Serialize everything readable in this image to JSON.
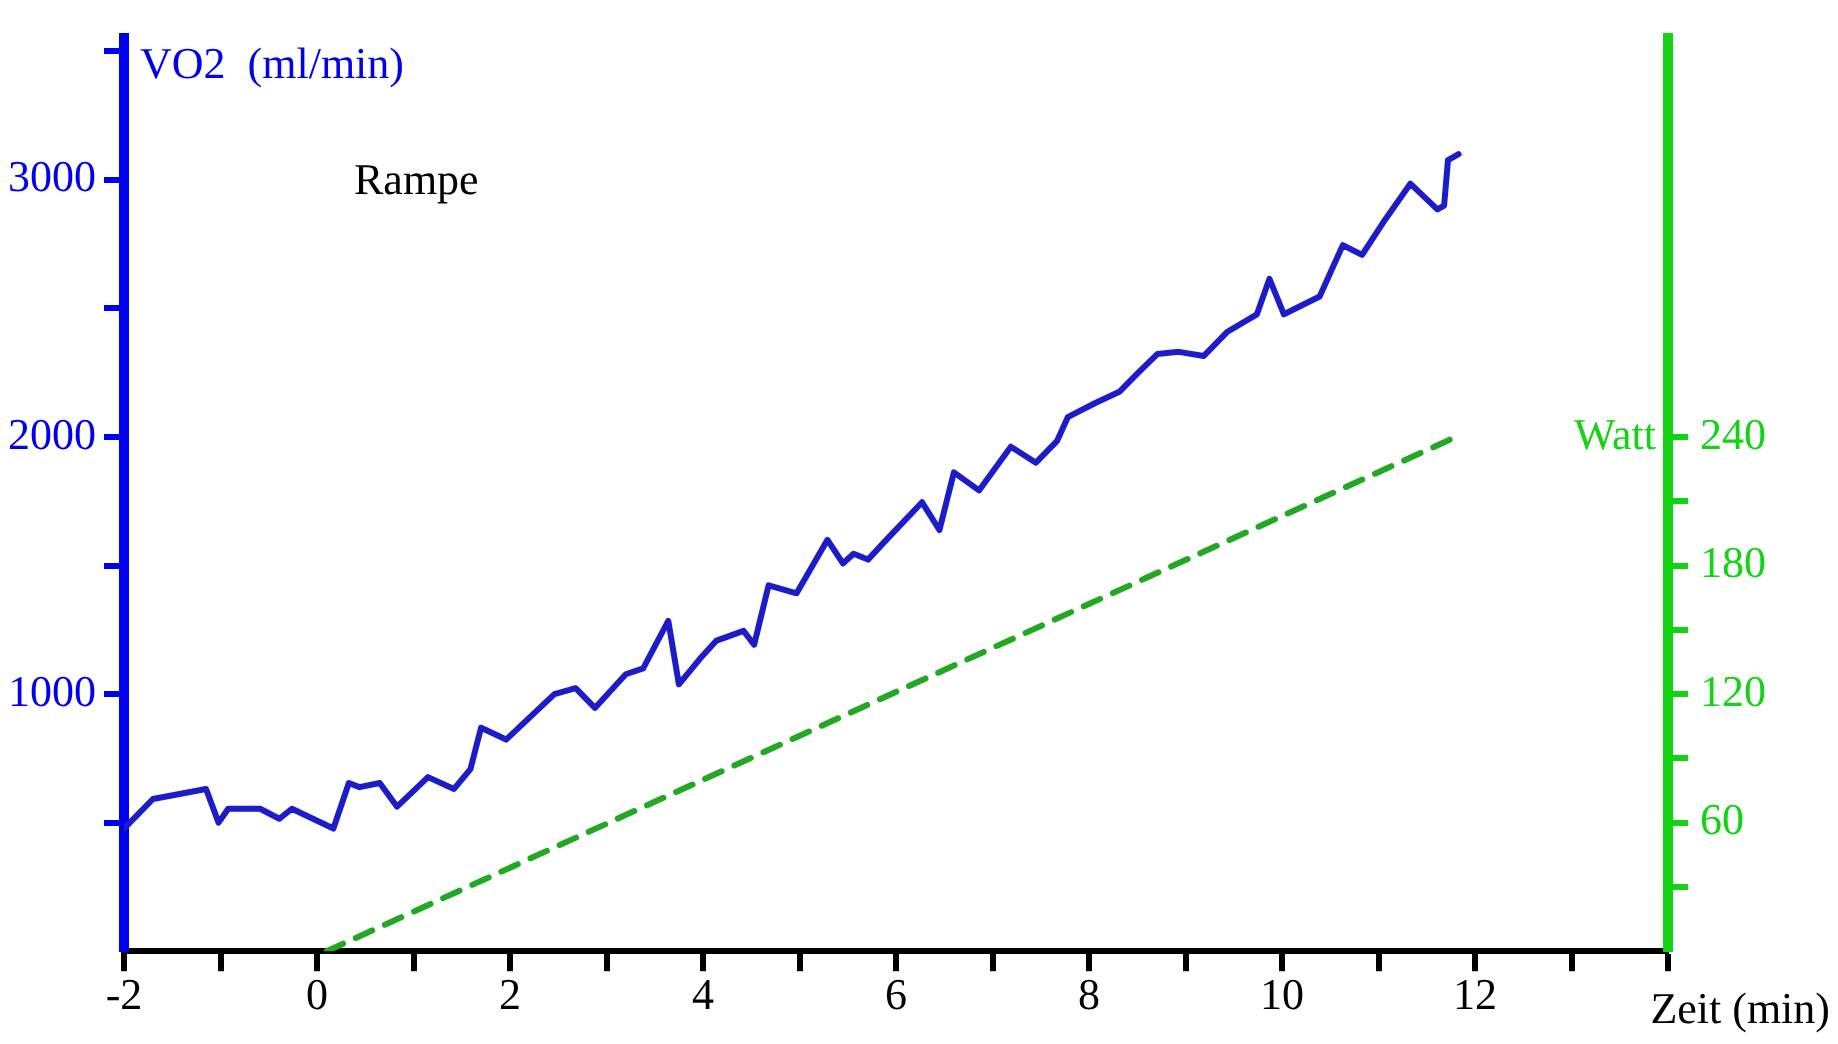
{
  "chart_data": {
    "type": "line",
    "ylabel": "VO2  (ml/min)",
    "y2label": "Watt",
    "xlabel": "Zeit (min)",
    "annotations": [
      "Rampe"
    ],
    "xlim": [
      -2,
      14
    ],
    "ylim": [
      0,
      3550
    ],
    "y2lim": [
      0,
      426
    ],
    "xticks": [
      -2,
      {
        "value": -1,
        "label": null
      },
      0,
      {
        "value": 1,
        "label": null
      },
      2,
      {
        "value": 3,
        "label": null
      },
      4,
      {
        "value": 5,
        "label": null
      },
      6,
      {
        "value": 7,
        "label": null
      },
      8,
      {
        "value": 9,
        "label": null
      },
      10,
      {
        "value": 11,
        "label": null
      },
      12,
      {
        "value": 13,
        "label": null
      },
      {
        "value": 14,
        "label": null
      }
    ],
    "yticks": [
      {
        "value": 500,
        "label": null
      },
      1000,
      {
        "value": 1500,
        "label": null
      },
      2000,
      {
        "value": 2500,
        "label": null
      },
      3000,
      {
        "value": 3500,
        "label": null
      }
    ],
    "y2ticks": [
      {
        "value": 30,
        "label": null
      },
      60,
      {
        "value": 90,
        "label": null
      },
      120,
      {
        "value": 150,
        "label": null
      },
      180,
      {
        "value": 210,
        "label": null
      },
      240
    ],
    "grid": false,
    "legend": false,
    "marker": "none",
    "series": [
      {
        "color": "#1c1cc8",
        "line_style": "solid",
        "x": [
          -2.0,
          -1.7,
          -1.15,
          -1.02,
          -0.92,
          -0.59,
          -0.39,
          -0.26,
          0.17,
          0.33,
          0.44,
          0.65,
          0.83,
          1.15,
          1.42,
          1.59,
          1.7,
          1.96,
          2.46,
          2.68,
          2.88,
          3.2,
          3.38,
          3.64,
          3.75,
          3.97,
          4.14,
          4.42,
          4.53,
          4.68,
          4.97,
          5.29,
          5.45,
          5.56,
          5.71,
          5.88,
          6.27,
          6.45,
          6.6,
          6.86,
          7.19,
          7.45,
          7.67,
          7.78,
          8.06,
          8.32,
          8.5,
          8.71,
          8.93,
          9.19,
          9.43,
          9.74,
          9.87,
          10.02,
          10.39,
          10.63,
          10.83,
          11.07,
          11.33,
          11.61,
          11.68,
          11.72,
          11.83
        ],
        "values": [
          477,
          592,
          631,
          500,
          554,
          554,
          515,
          554,
          477,
          654,
          638,
          654,
          562,
          677,
          631,
          708,
          869,
          823,
          1000,
          1023,
          946,
          1077,
          1100,
          1285,
          1038,
          1138,
          1208,
          1246,
          1192,
          1423,
          1392,
          1600,
          1508,
          1546,
          1523,
          1592,
          1746,
          1638,
          1862,
          1792,
          1962,
          1900,
          1985,
          2077,
          2131,
          2177,
          2246,
          2323,
          2331,
          2315,
          2408,
          2477,
          2615,
          2477,
          2546,
          2746,
          2708,
          2846,
          2985,
          2885,
          2900,
          3077,
          3100
        ]
      },
      {
        "color": "#22a822",
        "line_style": "dashed",
        "axis": "y2",
        "x": [
          0.1,
          11.8
        ],
        "values": [
          0,
          240
        ]
      }
    ]
  }
}
